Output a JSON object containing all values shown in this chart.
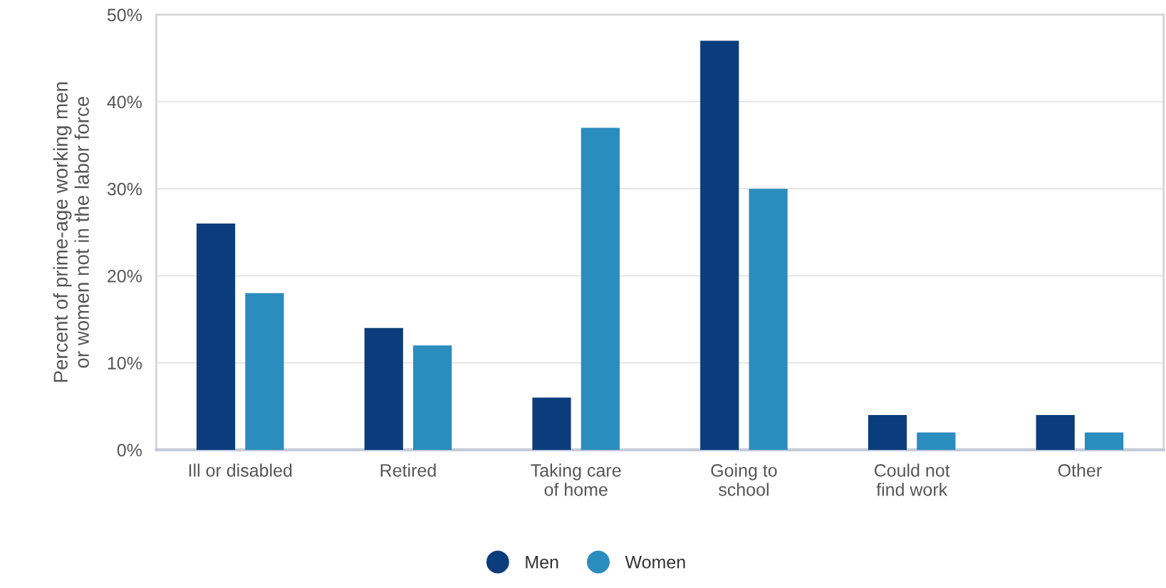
{
  "chart_data": {
    "type": "bar",
    "ylabel": "Percent of prime-age working men\nor women not in the labor force",
    "categories": [
      "Ill or disabled",
      "Retired",
      "Taking care\nof home",
      "Going to\nschool",
      "Could not\nfind work",
      "Other"
    ],
    "series": [
      {
        "name": "Men",
        "color": "#0b3d7d",
        "values": [
          26,
          14,
          6,
          47,
          4,
          4
        ]
      },
      {
        "name": "Women",
        "color": "#2b8cbe",
        "values": [
          18,
          12,
          37,
          30,
          2,
          2
        ]
      }
    ],
    "ylim": [
      0,
      50
    ],
    "yticks": [
      {
        "value": 0,
        "label": "0%"
      },
      {
        "value": 10,
        "label": "10%"
      },
      {
        "value": 20,
        "label": "20%"
      },
      {
        "value": 30,
        "label": "30%"
      },
      {
        "value": 40,
        "label": "40%"
      },
      {
        "value": 50,
        "label": "50%"
      }
    ],
    "grid": "y",
    "legend": "bottom",
    "marker": "circle"
  }
}
